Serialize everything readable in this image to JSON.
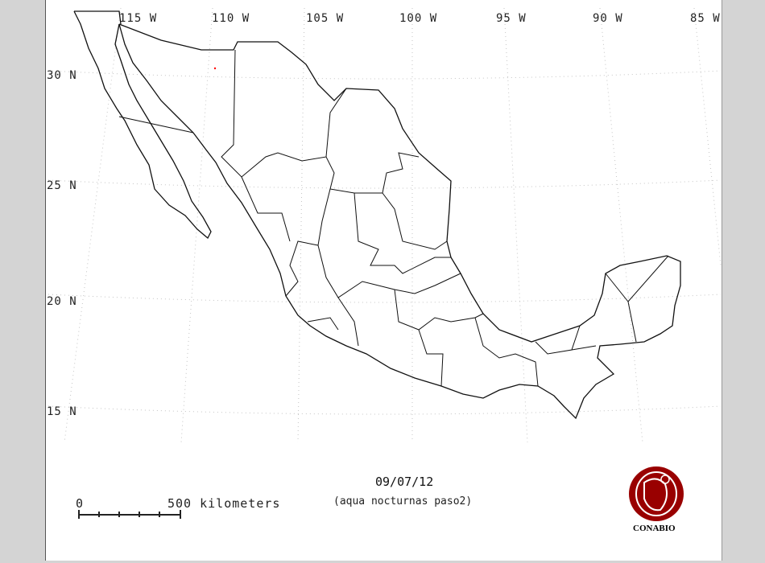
{
  "map": {
    "longitude_labels": [
      "115 W",
      "110 W",
      "105 W",
      "100 W",
      "95 W",
      "90 W",
      "85 W"
    ],
    "latitude_labels": [
      "30 N",
      "25 N",
      "20 N",
      "15 N"
    ],
    "date": "09/07/12",
    "subtitle": "(aqua nocturnas paso2)",
    "scale_bar": {
      "start_label": "0",
      "end_label": "500 kilometers"
    },
    "logo": {
      "text": "CONABIO",
      "color": "#990000"
    },
    "colors": {
      "outline": "#111111",
      "grid": "#bbbbbb",
      "hotspot": "#ff0000",
      "background": "#d4d4d4"
    },
    "hotspots": [
      {
        "lon": -110.6,
        "lat": 30.3
      }
    ]
  }
}
